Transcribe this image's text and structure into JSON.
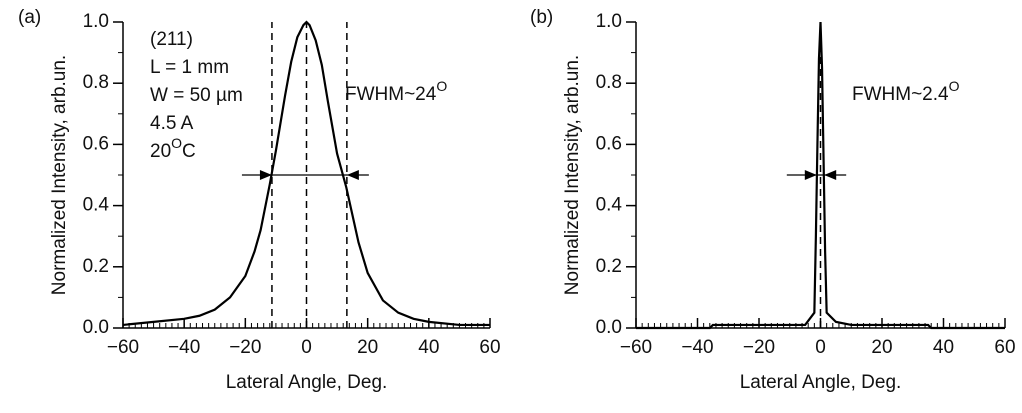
{
  "chart_data": [
    {
      "type": "line",
      "panel_label": "(a)",
      "x_label": "Lateral Angle, Deg.",
      "y_label": "Normalized Intensity, arb.un.",
      "xlim": [
        -60,
        60
      ],
      "ylim": [
        0,
        1
      ],
      "xticks": [
        {
          "value": -60,
          "label": "−60"
        },
        {
          "value": -40,
          "label": "−40"
        },
        {
          "value": -20,
          "label": "−20"
        },
        0,
        20,
        40,
        60
      ],
      "yticks": [
        {
          "value": 0,
          "label": "0.0"
        },
        0.2,
        0.4,
        0.6,
        0.8,
        {
          "value": 1,
          "label": "1.0"
        }
      ],
      "minor_xtick_step": 2,
      "minor_ytick_step": 0.1,
      "series": [
        {
          "color": "#000000",
          "x": [
            -60,
            -50,
            -40,
            -35,
            -30,
            -25,
            -20,
            -17,
            -15,
            -12,
            -10,
            -7,
            -5,
            -3,
            -1,
            0,
            1,
            3,
            5,
            7,
            10,
            13,
            15,
            17,
            20,
            25,
            30,
            35,
            40,
            50,
            60
          ],
          "values": [
            0.01,
            0.02,
            0.03,
            0.04,
            0.06,
            0.1,
            0.17,
            0.25,
            0.32,
            0.47,
            0.58,
            0.76,
            0.87,
            0.95,
            0.99,
            1.0,
            0.99,
            0.94,
            0.86,
            0.74,
            0.57,
            0.46,
            0.37,
            0.28,
            0.18,
            0.09,
            0.05,
            0.03,
            0.02,
            0.01,
            0.01
          ]
        }
      ],
      "dashed_x": [
        -11.3,
        0,
        13.2
      ],
      "fwhm_level": 0.5,
      "annotations": [
        {
          "text": "(211)"
        },
        {
          "text": "L = 1 mm"
        },
        {
          "text": "W = 50 µm"
        },
        {
          "text": "4.5 A"
        },
        {
          "text": "20",
          "sup": "O",
          "after": "C"
        }
      ],
      "fwhm_label": {
        "text": "FWHM~24",
        "sup": "O"
      }
    },
    {
      "type": "line",
      "panel_label": "(b)",
      "x_label": "Lateral Angle, Deg.",
      "y_label": "Normalized Intensity, arb.un.",
      "xlim": [
        -60,
        60
      ],
      "ylim": [
        0,
        1
      ],
      "xticks": [
        {
          "value": -60,
          "label": "−60"
        },
        {
          "value": -40,
          "label": "−40"
        },
        {
          "value": -20,
          "label": "−20"
        },
        0,
        20,
        40,
        60
      ],
      "yticks": [
        {
          "value": 0,
          "label": "0.0"
        },
        0.2,
        0.4,
        0.6,
        0.8,
        {
          "value": 1,
          "label": "1.0"
        }
      ],
      "minor_xtick_step": 2,
      "minor_ytick_step": 0.1,
      "series": [
        {
          "color": "#000000",
          "x": [
            -60,
            -36,
            -35,
            -30,
            -20,
            -10,
            -5,
            -2,
            -1.5,
            -1,
            -0.5,
            0,
            0.5,
            1,
            1.5,
            2,
            5,
            10,
            20,
            30,
            35,
            36,
            60
          ],
          "values": [
            0,
            0,
            0.01,
            0.01,
            0.01,
            0.01,
            0.01,
            0.05,
            0.3,
            0.6,
            0.88,
            1.0,
            0.85,
            0.55,
            0.25,
            0.05,
            0.02,
            0.01,
            0.01,
            0.01,
            0.01,
            0,
            0
          ]
        }
      ],
      "dashed_x": [
        0
      ],
      "fwhm_level": 0.5,
      "fwhm_x": [
        -1.2,
        1.2
      ],
      "fwhm_label": {
        "text": "FWHM~2.4",
        "sup": "O"
      }
    }
  ]
}
